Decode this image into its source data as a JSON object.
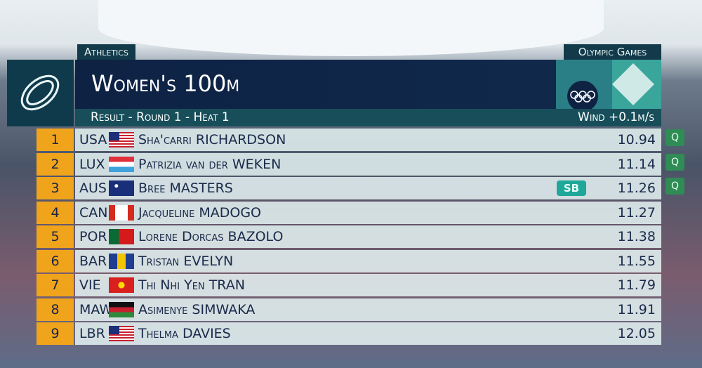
{
  "header": {
    "sport": "Athletics",
    "games": "Olympic Games",
    "event": "Women's 100m",
    "round": "Result - Round 1 - Heat 1",
    "wind": "Wind +0.1m/s"
  },
  "rows": [
    {
      "rank": 1,
      "country": "USA",
      "name": "Sha'carri RICHARDSON",
      "time": 10.94,
      "qualifier": "Q"
    },
    {
      "rank": 2,
      "country": "LUX",
      "name": "Patrizia van der WEKEN",
      "time": 11.14,
      "qualifier": "Q"
    },
    {
      "rank": 3,
      "country": "AUS",
      "name": "Bree MASTERS",
      "time": 11.26,
      "note": "SB",
      "qualifier": "Q"
    },
    {
      "rank": 4,
      "country": "CAN",
      "name": "Jacqueline MADOGO",
      "time": 11.27
    },
    {
      "rank": 5,
      "country": "POR",
      "name": "Lorene Dorcas BAZOLO",
      "time": 11.38
    },
    {
      "rank": 6,
      "country": "BAR",
      "name": "Tristan EVELYN",
      "time": 11.55
    },
    {
      "rank": 7,
      "country": "VIE",
      "name": "Thi Nhi Yen TRAN",
      "time": 11.79
    },
    {
      "rank": 8,
      "country": "MAW",
      "name": "Asimenye SIMWAKA",
      "time": 11.91
    },
    {
      "rank": 9,
      "country": "LBR",
      "name": "Thelma DAVIES",
      "time": 12.05
    }
  ]
}
